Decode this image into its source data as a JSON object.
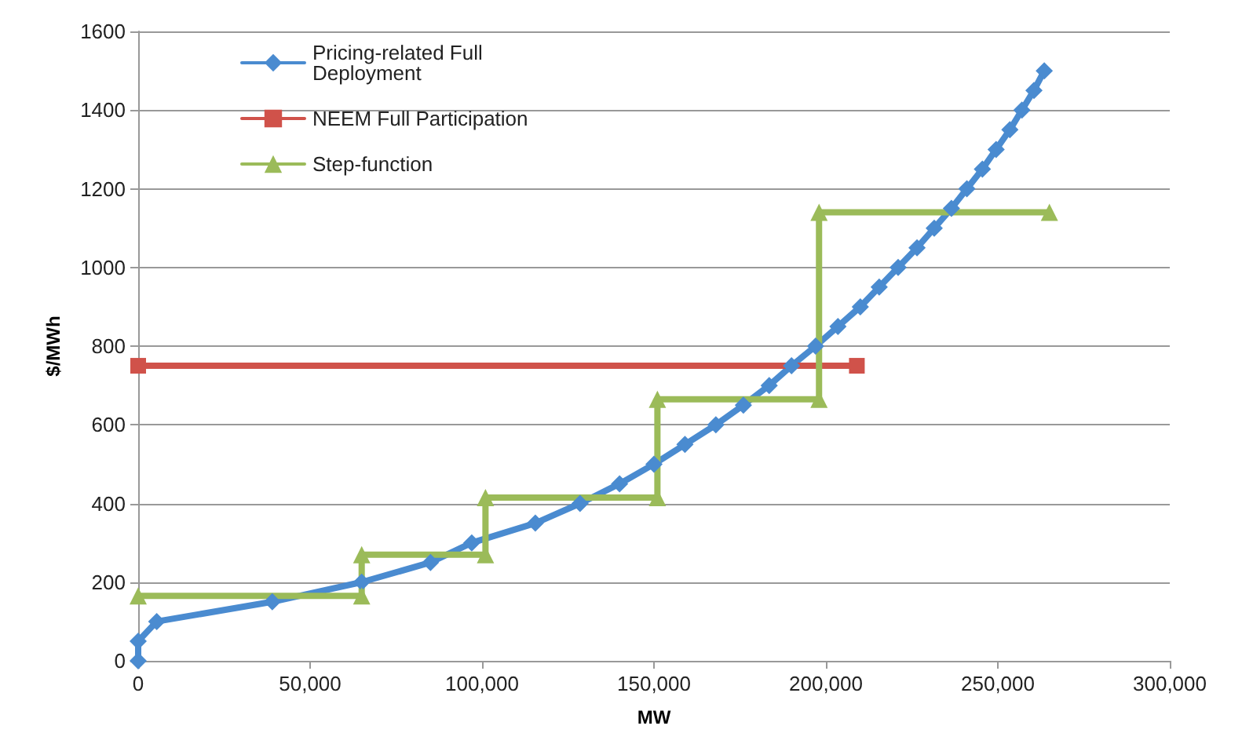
{
  "chart_data": {
    "type": "line",
    "xlabel": "MW",
    "ylabel": "$/MWh",
    "xlim": [
      0,
      300000
    ],
    "xticks": [
      0,
      {
        "value": 50000,
        "label": "50,000"
      },
      {
        "value": 100000,
        "label": "100,000"
      },
      {
        "value": 150000,
        "label": "150,000"
      },
      {
        "value": 200000,
        "label": "200,000"
      },
      {
        "value": 250000,
        "label": "250,000"
      },
      {
        "value": 300000,
        "label": "300,000"
      }
    ],
    "ylim": [
      0,
      1600
    ],
    "yticks": [
      0,
      200,
      400,
      600,
      800,
      1000,
      1200,
      1400,
      1600
    ],
    "grid": "y",
    "legend": "top left",
    "line_style": "solid",
    "series": [
      {
        "name": "Pricing-related Full Deployment",
        "color": "#4a8bd0",
        "marker": "diamond",
        "x": [
          0,
          0,
          5400,
          39000,
          65000,
          85000,
          97000,
          115500,
          128500,
          140000,
          150000,
          159000,
          168000,
          176000,
          183500,
          190000,
          197000,
          203500,
          210000,
          215500,
          221000,
          226500,
          231500,
          236500,
          241000,
          245500,
          249500,
          253500,
          257000,
          260500,
          263500
        ],
        "values": [
          0,
          50,
          100,
          150,
          200,
          250,
          300,
          350,
          400,
          450,
          500,
          550,
          600,
          650,
          700,
          750,
          800,
          850,
          900,
          950,
          1000,
          1050,
          1100,
          1150,
          1200,
          1250,
          1300,
          1350,
          1400,
          1450,
          1500
        ]
      },
      {
        "name": "NEEM Full Participation",
        "color": "#d0524a",
        "marker": "square",
        "x": [
          0,
          209000
        ],
        "values": [
          750,
          750
        ]
      },
      {
        "name": "Step-function",
        "color": "#9bbb59",
        "marker": "triangle",
        "x": [
          0,
          65000,
          65000,
          101000,
          101000,
          151000,
          151000,
          198000,
          198000,
          265000
        ],
        "values": [
          165,
          165,
          270,
          270,
          415,
          415,
          665,
          665,
          1140,
          1140
        ]
      }
    ]
  }
}
